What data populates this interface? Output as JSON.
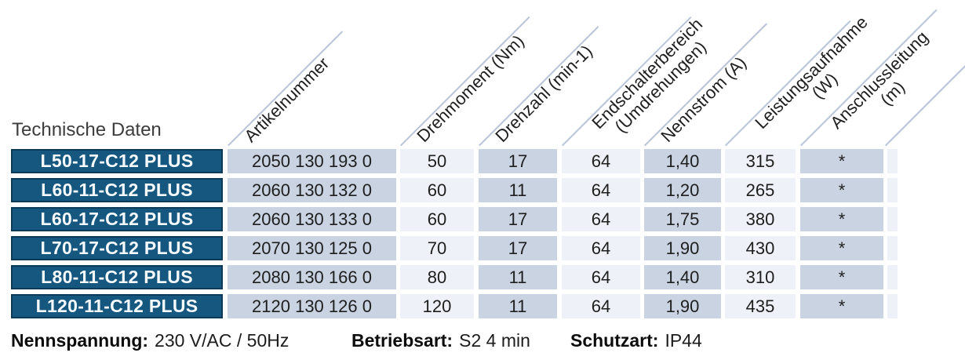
{
  "title": "Technische Daten",
  "header": {
    "columns": [
      {
        "id": "artikelnummer",
        "lines": [
          "Artikelnummer"
        ]
      },
      {
        "id": "drehmoment",
        "lines": [
          "Drehmoment (Nm)"
        ]
      },
      {
        "id": "drehzahl",
        "lines": [
          "Drehzahl (min-1)"
        ]
      },
      {
        "id": "endschalterbereich",
        "lines": [
          "Endschalterbereich",
          "(Umdrehungen)"
        ]
      },
      {
        "id": "nennstrom",
        "lines": [
          "Nennstrom (A)"
        ]
      },
      {
        "id": "leistungsaufnahme",
        "lines": [
          "Leistungsaufnahme",
          "(W)"
        ]
      },
      {
        "id": "anschlussleitung",
        "lines": [
          "Anschlussleitung",
          "(m)"
        ]
      }
    ]
  },
  "rows": [
    {
      "model": "L50-17-C12 PLUS",
      "artikelnummer": "2050 130 193 0",
      "drehmoment": "50",
      "drehzahl": "17",
      "endschalterbereich": "64",
      "nennstrom": "1,40",
      "leistungsaufnahme": "315",
      "anschlussleitung": "*"
    },
    {
      "model": "L60-11-C12 PLUS",
      "artikelnummer": "2060 130 132 0",
      "drehmoment": "60",
      "drehzahl": "11",
      "endschalterbereich": "64",
      "nennstrom": "1,20",
      "leistungsaufnahme": "265",
      "anschlussleitung": "*"
    },
    {
      "model": "L60-17-C12 PLUS",
      "artikelnummer": "2060 130 133 0",
      "drehmoment": "60",
      "drehzahl": "17",
      "endschalterbereich": "64",
      "nennstrom": "1,75",
      "leistungsaufnahme": "380",
      "anschlussleitung": "*"
    },
    {
      "model": "L70-17-C12 PLUS",
      "artikelnummer": "2070 130 125 0",
      "drehmoment": "70",
      "drehzahl": "17",
      "endschalterbereich": "64",
      "nennstrom": "1,90",
      "leistungsaufnahme": "430",
      "anschlussleitung": "*"
    },
    {
      "model": "L80-11-C12 PLUS",
      "artikelnummer": "2080 130 166 0",
      "drehmoment": "80",
      "drehzahl": "11",
      "endschalterbereich": "64",
      "nennstrom": "1,40",
      "leistungsaufnahme": "310",
      "anschlussleitung": "*"
    },
    {
      "model": "L120-11-C12 PLUS",
      "artikelnummer": "2120 130 126 0",
      "drehmoment": "120",
      "drehzahl": "11",
      "endschalterbereich": "64",
      "nennstrom": "1,90",
      "leistungsaufnahme": "435",
      "anschlussleitung": "*"
    }
  ],
  "footer": {
    "items": [
      {
        "label": "Nennspannung:",
        "value": "230 V/AC / 50Hz"
      },
      {
        "label": "Betriebsart:",
        "value": "S2 4 min"
      },
      {
        "label": "Schutzart:",
        "value": "IP44"
      }
    ]
  },
  "colors": {
    "row_label_bg": "#15577F",
    "row_label_border": "#0C3B59",
    "cell_dark": "#C9D3E1",
    "cell_light": "#EEF1F7",
    "diag_line": "#B8C4D8"
  }
}
